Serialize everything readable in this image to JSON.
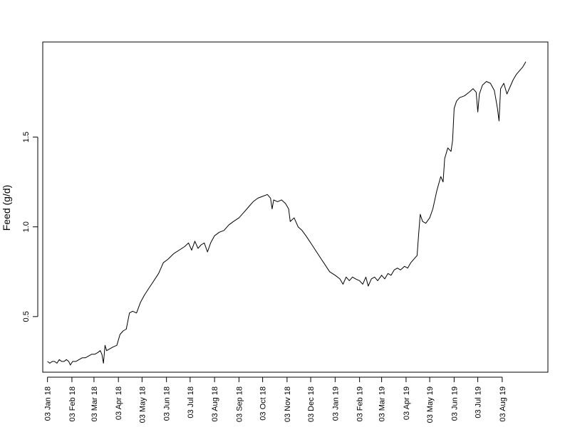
{
  "chart_data": {
    "type": "line",
    "title": "",
    "xlabel": "",
    "ylabel": "Feed (g/d)",
    "ylim": [
      0.19,
      2.03
    ],
    "xlim": [
      "2017-12-28",
      "2019-09-30"
    ],
    "grid": false,
    "y_ticks": [
      {
        "value": 0.5,
        "label": "0.5"
      },
      {
        "value": 1.0,
        "label": "1.0"
      },
      {
        "value": 1.5,
        "label": "1.5"
      }
    ],
    "x_ticks": [
      {
        "date": "2018-01-03",
        "label": "03 Jan 18"
      },
      {
        "date": "2018-02-03",
        "label": "03 Feb 18"
      },
      {
        "date": "2018-03-03",
        "label": "03 Mar 18"
      },
      {
        "date": "2018-04-03",
        "label": "03 Apr 18"
      },
      {
        "date": "2018-05-03",
        "label": "03 May 18"
      },
      {
        "date": "2018-06-03",
        "label": "03 Jun 18"
      },
      {
        "date": "2018-07-03",
        "label": "03 Jul 18"
      },
      {
        "date": "2018-08-03",
        "label": "03 Aug 18"
      },
      {
        "date": "2018-09-03",
        "label": "03 Sep 18"
      },
      {
        "date": "2018-10-03",
        "label": "03 Oct 18"
      },
      {
        "date": "2018-11-03",
        "label": "03 Nov 18"
      },
      {
        "date": "2018-12-03",
        "label": "03 Dec 18"
      },
      {
        "date": "2019-01-03",
        "label": "03 Jan 19"
      },
      {
        "date": "2019-02-03",
        "label": "03 Feb 19"
      },
      {
        "date": "2019-03-03",
        "label": "03 Mar 19"
      },
      {
        "date": "2019-04-03",
        "label": "03 Apr 19"
      },
      {
        "date": "2019-05-03",
        "label": "03 May 19"
      },
      {
        "date": "2019-06-03",
        "label": "03 Jun 19"
      },
      {
        "date": "2019-07-03",
        "label": "03 Jul 19"
      },
      {
        "date": "2019-08-03",
        "label": "03 Aug 19"
      }
    ],
    "series": [
      {
        "color": "#000000",
        "points": [
          [
            "2018-01-03",
            0.25
          ],
          [
            "2018-01-06",
            0.24
          ],
          [
            "2018-01-09",
            0.25
          ],
          [
            "2018-01-12",
            0.25
          ],
          [
            "2018-01-15",
            0.24
          ],
          [
            "2018-01-18",
            0.26
          ],
          [
            "2018-01-21",
            0.25
          ],
          [
            "2018-01-24",
            0.25
          ],
          [
            "2018-01-27",
            0.26
          ],
          [
            "2018-01-30",
            0.25
          ],
          [
            "2018-02-01",
            0.23
          ],
          [
            "2018-02-04",
            0.25
          ],
          [
            "2018-02-08",
            0.25
          ],
          [
            "2018-02-12",
            0.26
          ],
          [
            "2018-02-16",
            0.27
          ],
          [
            "2018-02-20",
            0.27
          ],
          [
            "2018-02-24",
            0.28
          ],
          [
            "2018-02-28",
            0.29
          ],
          [
            "2018-03-04",
            0.29
          ],
          [
            "2018-03-08",
            0.3
          ],
          [
            "2018-03-11",
            0.31
          ],
          [
            "2018-03-13",
            0.29
          ],
          [
            "2018-03-15",
            0.24
          ],
          [
            "2018-03-17",
            0.34
          ],
          [
            "2018-03-19",
            0.31
          ],
          [
            "2018-03-23",
            0.32
          ],
          [
            "2018-03-27",
            0.33
          ],
          [
            "2018-04-01",
            0.34
          ],
          [
            "2018-04-05",
            0.4
          ],
          [
            "2018-04-09",
            0.42
          ],
          [
            "2018-04-13",
            0.43
          ],
          [
            "2018-04-17",
            0.52
          ],
          [
            "2018-04-21",
            0.53
          ],
          [
            "2018-04-26",
            0.52
          ],
          [
            "2018-05-01",
            0.58
          ],
          [
            "2018-05-06",
            0.62
          ],
          [
            "2018-05-12",
            0.66
          ],
          [
            "2018-05-18",
            0.7
          ],
          [
            "2018-05-24",
            0.74
          ],
          [
            "2018-05-30",
            0.8
          ],
          [
            "2018-06-05",
            0.82
          ],
          [
            "2018-06-12",
            0.85
          ],
          [
            "2018-06-19",
            0.87
          ],
          [
            "2018-06-26",
            0.89
          ],
          [
            "2018-07-01",
            0.91
          ],
          [
            "2018-07-05",
            0.87
          ],
          [
            "2018-07-09",
            0.92
          ],
          [
            "2018-07-13",
            0.88
          ],
          [
            "2018-07-17",
            0.9
          ],
          [
            "2018-07-21",
            0.91
          ],
          [
            "2018-07-25",
            0.86
          ],
          [
            "2018-07-29",
            0.91
          ],
          [
            "2018-08-03",
            0.95
          ],
          [
            "2018-08-09",
            0.97
          ],
          [
            "2018-08-15",
            0.98
          ],
          [
            "2018-08-21",
            1.01
          ],
          [
            "2018-08-27",
            1.03
          ],
          [
            "2018-09-03",
            1.05
          ],
          [
            "2018-09-09",
            1.08
          ],
          [
            "2018-09-15",
            1.11
          ],
          [
            "2018-09-21",
            1.14
          ],
          [
            "2018-09-27",
            1.16
          ],
          [
            "2018-10-03",
            1.17
          ],
          [
            "2018-10-09",
            1.18
          ],
          [
            "2018-10-13",
            1.16
          ],
          [
            "2018-10-15",
            1.1
          ],
          [
            "2018-10-17",
            1.15
          ],
          [
            "2018-10-22",
            1.14
          ],
          [
            "2018-10-27",
            1.15
          ],
          [
            "2018-11-01",
            1.13
          ],
          [
            "2018-11-05",
            1.1
          ],
          [
            "2018-11-07",
            1.03
          ],
          [
            "2018-11-12",
            1.05
          ],
          [
            "2018-11-17",
            1.0
          ],
          [
            "2018-11-22",
            0.98
          ],
          [
            "2018-11-27",
            0.95
          ],
          [
            "2018-12-03",
            0.91
          ],
          [
            "2018-12-09",
            0.87
          ],
          [
            "2018-12-15",
            0.83
          ],
          [
            "2018-12-21",
            0.79
          ],
          [
            "2018-12-27",
            0.75
          ],
          [
            "2019-01-03",
            0.73
          ],
          [
            "2019-01-09",
            0.71
          ],
          [
            "2019-01-13",
            0.68
          ],
          [
            "2019-01-17",
            0.72
          ],
          [
            "2019-01-21",
            0.7
          ],
          [
            "2019-01-25",
            0.72
          ],
          [
            "2019-01-29",
            0.71
          ],
          [
            "2019-02-03",
            0.7
          ],
          [
            "2019-02-07",
            0.68
          ],
          [
            "2019-02-11",
            0.72
          ],
          [
            "2019-02-14",
            0.67
          ],
          [
            "2019-02-18",
            0.71
          ],
          [
            "2019-02-22",
            0.72
          ],
          [
            "2019-02-26",
            0.7
          ],
          [
            "2019-03-03",
            0.73
          ],
          [
            "2019-03-07",
            0.71
          ],
          [
            "2019-03-11",
            0.74
          ],
          [
            "2019-03-15",
            0.73
          ],
          [
            "2019-03-19",
            0.76
          ],
          [
            "2019-03-23",
            0.77
          ],
          [
            "2019-03-27",
            0.76
          ],
          [
            "2019-04-01",
            0.78
          ],
          [
            "2019-04-05",
            0.77
          ],
          [
            "2019-04-09",
            0.8
          ],
          [
            "2019-04-13",
            0.82
          ],
          [
            "2019-04-17",
            0.84
          ],
          [
            "2019-04-19",
            0.96
          ],
          [
            "2019-04-21",
            1.07
          ],
          [
            "2019-04-24",
            1.03
          ],
          [
            "2019-04-28",
            1.02
          ],
          [
            "2019-05-03",
            1.05
          ],
          [
            "2019-05-07",
            1.1
          ],
          [
            "2019-05-12",
            1.2
          ],
          [
            "2019-05-17",
            1.28
          ],
          [
            "2019-05-20",
            1.25
          ],
          [
            "2019-05-22",
            1.38
          ],
          [
            "2019-05-26",
            1.44
          ],
          [
            "2019-05-30",
            1.42
          ],
          [
            "2019-06-01",
            1.48
          ],
          [
            "2019-06-03",
            1.66
          ],
          [
            "2019-06-06",
            1.7
          ],
          [
            "2019-06-10",
            1.72
          ],
          [
            "2019-06-16",
            1.73
          ],
          [
            "2019-06-22",
            1.75
          ],
          [
            "2019-06-27",
            1.77
          ],
          [
            "2019-07-01",
            1.75
          ],
          [
            "2019-07-03",
            1.64
          ],
          [
            "2019-07-05",
            1.74
          ],
          [
            "2019-07-09",
            1.79
          ],
          [
            "2019-07-14",
            1.81
          ],
          [
            "2019-07-19",
            1.8
          ],
          [
            "2019-07-24",
            1.76
          ],
          [
            "2019-07-28",
            1.66
          ],
          [
            "2019-07-30",
            1.59
          ],
          [
            "2019-08-01",
            1.77
          ],
          [
            "2019-08-05",
            1.8
          ],
          [
            "2019-08-09",
            1.74
          ],
          [
            "2019-08-13",
            1.78
          ],
          [
            "2019-08-17",
            1.82
          ],
          [
            "2019-08-21",
            1.85
          ],
          [
            "2019-08-25",
            1.87
          ],
          [
            "2019-08-29",
            1.89
          ],
          [
            "2019-09-02",
            1.92
          ]
        ]
      }
    ]
  }
}
